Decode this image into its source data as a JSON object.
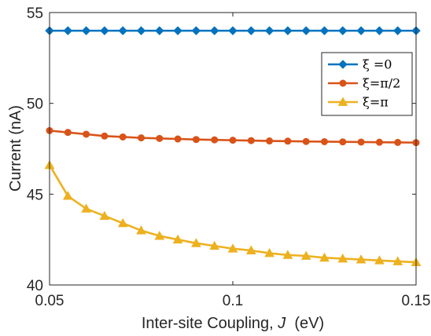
{
  "chart_data": {
    "type": "line",
    "xlabel_main": "Inter-site Coupling, ",
    "xlabel_var": "J",
    "xlabel_unit": "  (eV)",
    "ylabel": "Current (nA)",
    "xlim": [
      0.05,
      0.15
    ],
    "ylim": [
      40,
      55
    ],
    "xticks": [
      0.05,
      0.1,
      0.15
    ],
    "xtick_labels": [
      "0.05",
      "0.1",
      "0.15"
    ],
    "yticks": [
      40,
      45,
      50,
      55
    ],
    "ytick_labels": [
      "40",
      "45",
      "50",
      "55"
    ],
    "grid": false,
    "legend_position": "upper-right",
    "x": [
      0.05,
      0.055,
      0.06,
      0.065,
      0.07,
      0.075,
      0.08,
      0.085,
      0.09,
      0.095,
      0.1,
      0.105,
      0.11,
      0.115,
      0.12,
      0.125,
      0.13,
      0.135,
      0.14,
      0.145,
      0.15
    ],
    "series": [
      {
        "name": "ξ =0",
        "color": "#0072BD",
        "marker": "diamond",
        "values": [
          54,
          54,
          54,
          54,
          54,
          54,
          54,
          54,
          54,
          54,
          54,
          54,
          54,
          54,
          54,
          54,
          54,
          54,
          54,
          54,
          54
        ]
      },
      {
        "name": "ξ=π/2",
        "color": "#D95319",
        "marker": "circle",
        "values": [
          48.5,
          48.4,
          48.3,
          48.2,
          48.15,
          48.1,
          48.07,
          48.04,
          48.01,
          47.99,
          47.97,
          47.95,
          47.93,
          47.92,
          47.9,
          47.89,
          47.88,
          47.87,
          47.86,
          47.85,
          47.84
        ]
      },
      {
        "name": "ξ=π",
        "color": "#EDB120",
        "marker": "triangle",
        "values": [
          46.6,
          44.9,
          44.2,
          43.8,
          43.4,
          43.0,
          42.7,
          42.5,
          42.3,
          42.15,
          42.0,
          41.9,
          41.75,
          41.65,
          41.6,
          41.5,
          41.45,
          41.4,
          41.35,
          41.3,
          41.25
        ]
      }
    ]
  }
}
